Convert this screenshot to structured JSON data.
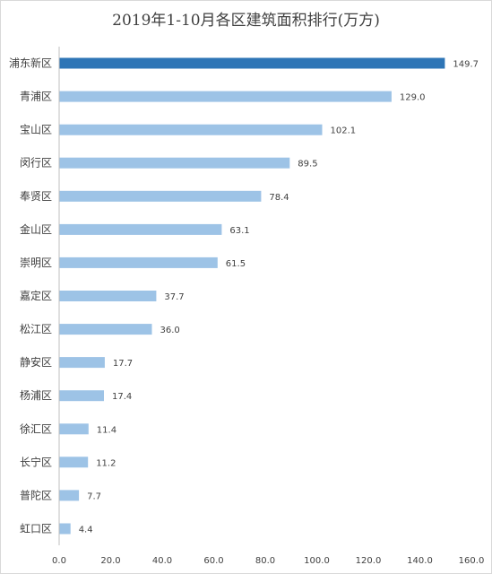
{
  "chart_data": {
    "type": "bar",
    "orientation": "horizontal",
    "title": "2019年1-10月各区建筑面积排行(万方)",
    "categories": [
      "浦东新区",
      "青浦区",
      "宝山区",
      "闵行区",
      "奉贤区",
      "金山区",
      "崇明区",
      "嘉定区",
      "松江区",
      "静安区",
      "杨浦区",
      "徐汇区",
      "长宁区",
      "普陀区",
      "虹口区"
    ],
    "values": [
      149.7,
      129.0,
      102.1,
      89.5,
      78.4,
      63.1,
      61.5,
      37.7,
      36.0,
      17.7,
      17.4,
      11.4,
      11.2,
      7.7,
      4.4
    ],
    "value_labels": [
      "149.7",
      "129.0",
      "102.1",
      "89.5",
      "78.4",
      "63.1",
      "61.5",
      "37.7",
      "36.0",
      "17.7",
      "17.4",
      "11.4",
      "11.2",
      "7.7",
      "4.4"
    ],
    "xlim": [
      0,
      160
    ],
    "x_ticks": [
      "0.0",
      "20.0",
      "40.0",
      "60.0",
      "80.0",
      "100.0",
      "120.0",
      "140.0",
      "160.0"
    ],
    "x_tick_values": [
      0,
      20,
      40,
      60,
      80,
      100,
      120,
      140,
      160
    ],
    "highlight_color": "#2e75b6",
    "bar_color": "#9dc3e6",
    "grid": false,
    "legend": "none"
  }
}
